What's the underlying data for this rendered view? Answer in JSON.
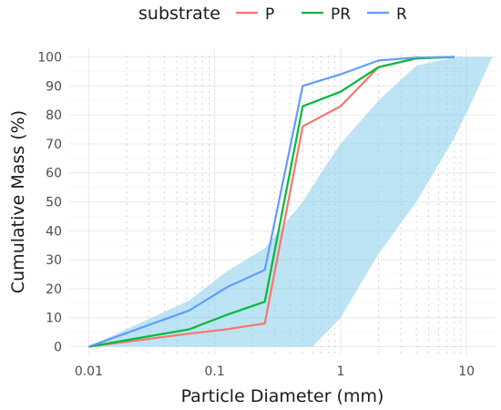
{
  "chart_data": {
    "type": "line",
    "xlabel": "Particle Diameter (mm)",
    "ylabel": "Cumulative Mass (%)",
    "x_scale": "log10",
    "xlim": [
      0.007,
      17
    ],
    "ylim": [
      -3,
      103
    ],
    "x_ticks": [
      0.01,
      0.1,
      1,
      10
    ],
    "x_tick_labels": [
      "0.01",
      "0.1",
      "1",
      "10"
    ],
    "y_ticks": [
      0,
      10,
      20,
      30,
      40,
      50,
      60,
      70,
      80,
      90,
      100
    ],
    "y_tick_labels": [
      "0",
      "10",
      "20",
      "30",
      "40",
      "50",
      "60",
      "70",
      "80",
      "90",
      "100"
    ],
    "grid": true,
    "legend": {
      "title": "substrate",
      "position": "top"
    },
    "series": [
      {
        "name": "P",
        "color": "#F8766D",
        "x": [
          0.01,
          0.063,
          0.125,
          0.25,
          0.5,
          1,
          2,
          4,
          8
        ],
        "y": [
          0,
          4.5,
          6,
          8,
          76,
          83,
          96.5,
          99.5,
          100
        ]
      },
      {
        "name": "PR",
        "color": "#00BA38",
        "x": [
          0.01,
          0.063,
          0.125,
          0.25,
          0.5,
          1,
          2,
          4,
          8
        ],
        "y": [
          0,
          6,
          11,
          15.5,
          83,
          88,
          96.5,
          99.5,
          100
        ]
      },
      {
        "name": "R",
        "color": "#619CFF",
        "x": [
          0.01,
          0.063,
          0.125,
          0.25,
          0.5,
          1,
          2,
          4,
          8
        ],
        "y": [
          0,
          12.5,
          20.5,
          26.5,
          90,
          94,
          98.8,
          99.8,
          100
        ]
      }
    ],
    "band": {
      "color": "#87CEEB",
      "upper": {
        "x": [
          0.01,
          0.063,
          0.125,
          0.25,
          0.5,
          0.75,
          1,
          2,
          4,
          8,
          16
        ],
        "y": [
          0,
          16,
          26,
          34,
          50,
          62,
          70,
          85,
          97,
          100,
          100
        ]
      },
      "lower": {
        "x": [
          16,
          12,
          8,
          4,
          2,
          1,
          0.6,
          0.01
        ],
        "y": [
          100,
          88,
          72,
          50,
          32,
          10,
          0,
          0
        ]
      }
    },
    "dotted_verticals": [
      0.02,
      0.03,
      0.04,
      0.05,
      0.06,
      0.07,
      0.08,
      0.09,
      0.2,
      0.3,
      0.4,
      0.5,
      0.6,
      0.7,
      0.8,
      0.9,
      2,
      3,
      4,
      5,
      6,
      7,
      8,
      9
    ]
  }
}
